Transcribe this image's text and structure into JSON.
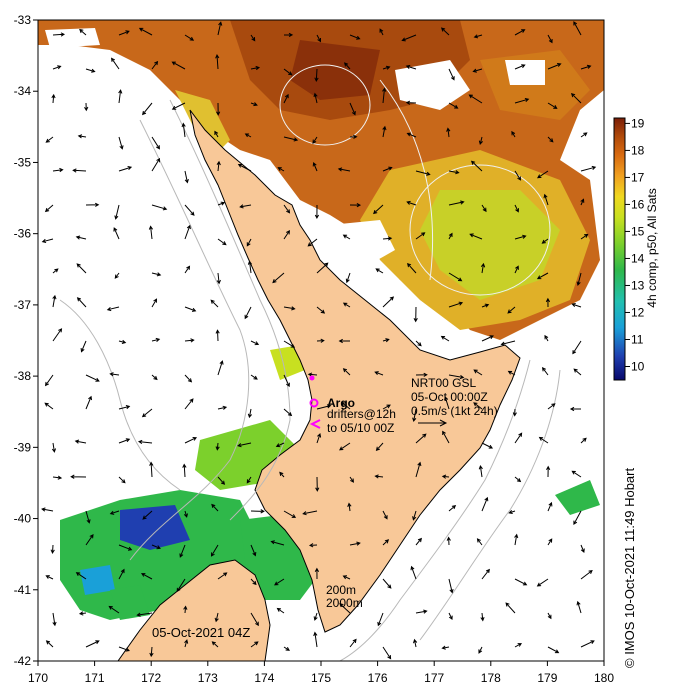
{
  "map": {
    "lon_ticks": [
      "170",
      "171",
      "172",
      "173",
      "174",
      "175",
      "176",
      "177",
      "178",
      "179",
      "180"
    ],
    "lat_ticks": [
      "-33",
      "-34",
      "-35",
      "-36",
      "-37",
      "-38",
      "-39",
      "-40",
      "-41",
      "-42"
    ],
    "lon_range": [
      170,
      180
    ],
    "lat_range": [
      -42,
      -33
    ]
  },
  "colorbar": {
    "ticks": [
      "19",
      "18",
      "17",
      "16",
      "15",
      "14",
      "13",
      "12",
      "11",
      "10"
    ],
    "range": [
      9.5,
      19.2
    ],
    "label": "4h comp, p50, All Sats",
    "colors": [
      "#08086b",
      "#1f3fb0",
      "#1aa0d8",
      "#22c0b0",
      "#2fb84a",
      "#7cd02c",
      "#c8e020",
      "#f0d820",
      "#f0a020",
      "#d86a10",
      "#b04a0a",
      "#7a1e08"
    ]
  },
  "annotations": {
    "argo_label": "Argo",
    "drifters_line1": "drifters@12h",
    "drifters_line2": "to 05/10 00Z",
    "nrt_line1": "NRT00 GSL",
    "nrt_line2": "05-Oct 00:00Z",
    "nrt_line3": "0.5m/s (1kt 24h)",
    "depth_200": "200m",
    "depth_2000": "2000m",
    "date": "05-Oct-2021 04Z",
    "credit": "© IMOS 10-Oct-2021 11:49 Hobart"
  },
  "colors": {
    "land": "#f8c898",
    "argo_marker": "#ff00ff",
    "contour": "#c0c0c0"
  }
}
